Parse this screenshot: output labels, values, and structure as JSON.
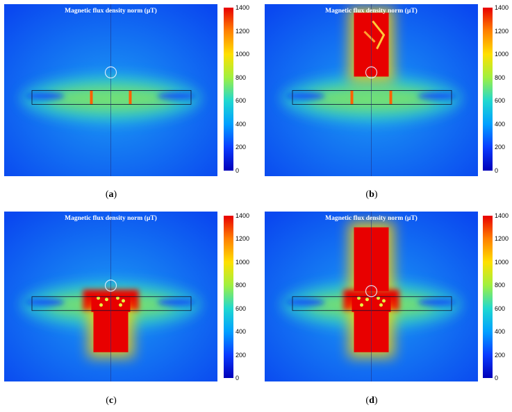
{
  "panels": [
    {
      "id": "a",
      "caption_open": "(",
      "caption_letter": "a",
      "caption_close": ")",
      "title": "Magnetic flux density norm (µT)",
      "state": "base"
    },
    {
      "id": "b",
      "caption_open": "(",
      "caption_letter": "b",
      "caption_close": ")",
      "title": "Magnetic flux density norm (µT)",
      "state": "top-block"
    },
    {
      "id": "c",
      "caption_open": "(",
      "caption_letter": "c",
      "caption_close": ")",
      "title": "Magnetic flux density norm (µT)",
      "state": "bottom-block"
    },
    {
      "id": "d",
      "caption_open": "(",
      "caption_letter": "d",
      "caption_close": ")",
      "title": "Magnetic flux density norm (µT)",
      "state": "both-blocks"
    }
  ],
  "colorbar": {
    "min": 0,
    "max": 1400,
    "ticks": [
      "1400",
      "1200",
      "1000",
      "800",
      "600",
      "400",
      "200",
      "0"
    ],
    "colors": [
      "#0000b8",
      "#0a3cff",
      "#00a0ff",
      "#20d8d0",
      "#a0f040",
      "#ffe000",
      "#ff8000",
      "#e80000"
    ]
  }
}
